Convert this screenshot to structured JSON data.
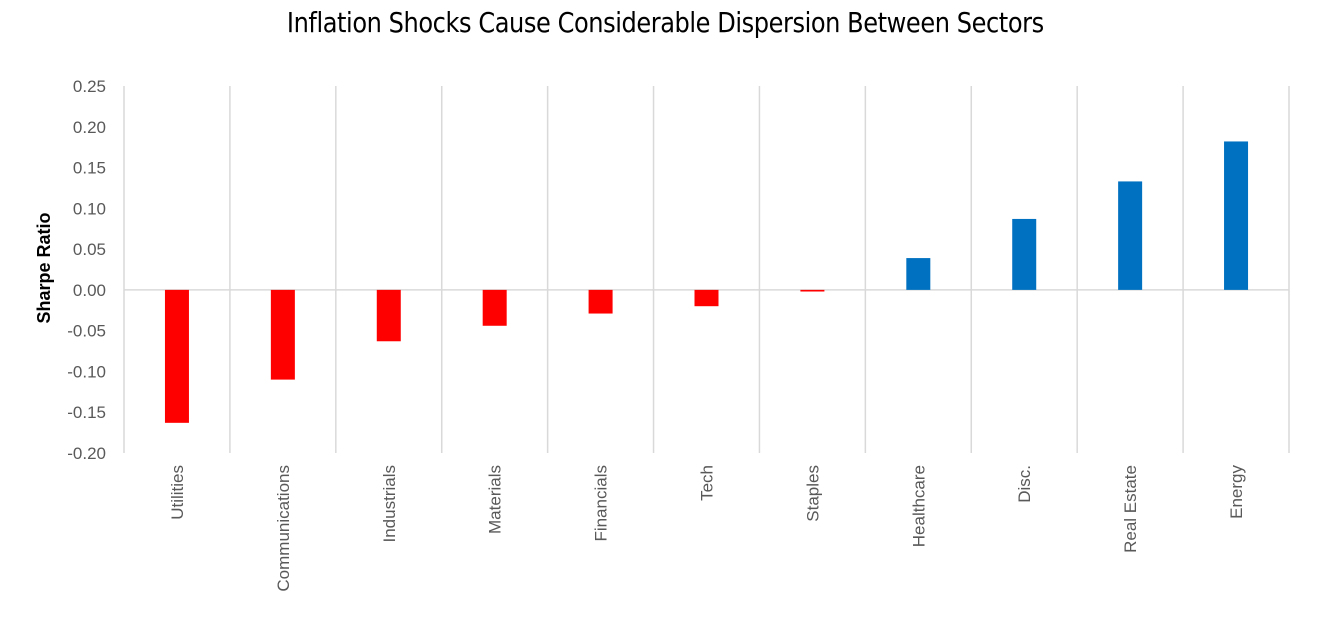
{
  "chart_data": {
    "type": "bar",
    "title": "Inflation Shocks Cause Considerable Dispersion Between Sectors",
    "xlabel": "",
    "ylabel": "Sharpe Ratio",
    "ylim": [
      -0.2,
      0.25
    ],
    "yticks": [
      "0.25",
      "0.20",
      "0.15",
      "0.10",
      "0.05",
      "0.00",
      "-0.05",
      "-0.10",
      "-0.15",
      "-0.20"
    ],
    "categories": [
      "Utilities",
      "Communications",
      "Industrials",
      "Materials",
      "Financials",
      "Tech",
      "Staples",
      "Healthcare",
      "Disc.",
      "Real Estate",
      "Energy"
    ],
    "values": [
      -0.163,
      -0.11,
      -0.063,
      -0.044,
      -0.029,
      -0.02,
      -0.002,
      0.039,
      0.087,
      0.133,
      0.182
    ],
    "colors": {
      "negative": "#ff0000",
      "positive": "#0070c0",
      "grid": "#d9d9d9"
    },
    "grid": true
  }
}
